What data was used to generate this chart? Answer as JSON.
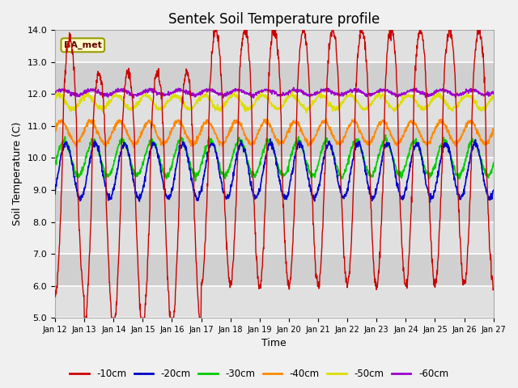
{
  "title": "Sentek Soil Temperature profile",
  "xlabel": "Time",
  "ylabel": "Soil Temperature (C)",
  "ylim": [
    5.0,
    14.0
  ],
  "yticks": [
    5.0,
    6.0,
    7.0,
    8.0,
    9.0,
    10.0,
    11.0,
    12.0,
    13.0,
    14.0
  ],
  "xtick_labels": [
    "Jan 12",
    "Jan 13",
    "Jan 14",
    "Jan 15",
    "Jan 16",
    "Jan 17",
    "Jan 18",
    "Jan 19",
    "Jan 20",
    "Jan 21",
    "Jan 22",
    "Jan 23",
    "Jan 24",
    "Jan 25",
    "Jan 26",
    "Jan 27"
  ],
  "legend_label": "BA_met",
  "series_labels": [
    "-10cm",
    "-20cm",
    "-30cm",
    "-40cm",
    "-50cm",
    "-60cm"
  ],
  "series_colors": [
    "#cc0000",
    "#0000cc",
    "#00cc00",
    "#ff8800",
    "#dddd00",
    "#9900cc"
  ],
  "band_colors": [
    "#e0e0e0",
    "#d0d0d0"
  ],
  "title_fontsize": 12,
  "label_fontsize": 9,
  "tick_fontsize": 8,
  "figsize": [
    6.4,
    4.8
  ],
  "dpi": 100
}
